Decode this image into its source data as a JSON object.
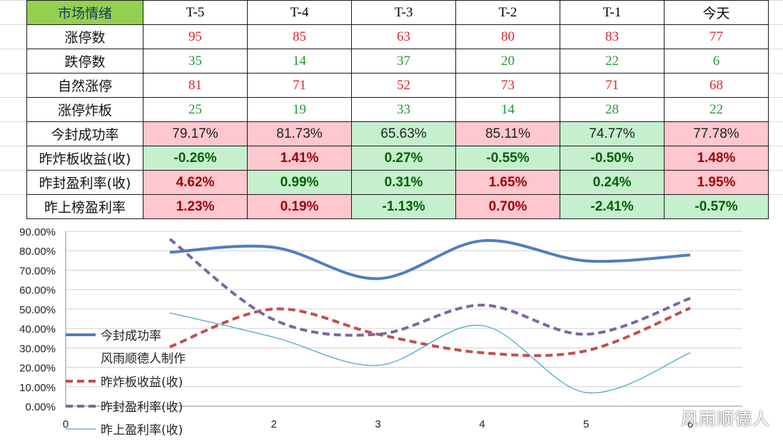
{
  "table": {
    "header": [
      "市场情绪",
      "T-5",
      "T-4",
      "T-3",
      "T-2",
      "T-1",
      "今天"
    ],
    "rows": [
      {
        "label": "涨停数",
        "values": [
          "95",
          "85",
          "63",
          "80",
          "83",
          "77"
        ]
      },
      {
        "label": "跌停数",
        "values": [
          "35",
          "14",
          "37",
          "20",
          "22",
          "6"
        ]
      },
      {
        "label": "自然涨停",
        "values": [
          "81",
          "71",
          "52",
          "73",
          "71",
          "68"
        ]
      },
      {
        "label": "涨停炸板",
        "values": [
          "25",
          "19",
          "33",
          "14",
          "28",
          "22"
        ]
      },
      {
        "label": "今封成功率",
        "values": [
          "79.17%",
          "81.73%",
          "65.63%",
          "85.11%",
          "74.77%",
          "77.78%"
        ]
      },
      {
        "label": "昨炸板收益(收)",
        "values": [
          "-0.26%",
          "1.41%",
          "0.27%",
          "-0.55%",
          "-0.50%",
          "1.48%"
        ]
      },
      {
        "label": "昨封盈利率(收)",
        "values": [
          "4.62%",
          "0.99%",
          "0.31%",
          "1.65%",
          "0.24%",
          "1.95%"
        ]
      },
      {
        "label": "昨上榜盈利率",
        "values": [
          "1.23%",
          "0.19%",
          "-1.13%",
          "0.70%",
          "-2.41%",
          "-0.57%"
        ]
      }
    ],
    "colors": {
      "header_bg": "#92d050",
      "count_red": "#e0242a",
      "count_green": "#1e9c3a",
      "pink_bg": "#ffc7ce",
      "pink_text": "#9c0006",
      "mint_bg": "#c6efce",
      "mint_text": "#006100"
    }
  },
  "chart_data": {
    "type": "line",
    "x": [
      1,
      2,
      3,
      4,
      5,
      6
    ],
    "xticks": [
      "0",
      "",
      "2",
      "3",
      "4",
      "5",
      "6"
    ],
    "ylim": [
      0,
      90
    ],
    "yticks": [
      "0.00%",
      "10.00%",
      "20.00%",
      "30.00%",
      "40.00%",
      "50.00%",
      "60.00%",
      "70.00%",
      "80.00%",
      "90.00%"
    ],
    "series": [
      {
        "name": "今封成功率",
        "values": [
          79.17,
          81.73,
          65.63,
          85.11,
          74.77,
          77.78
        ],
        "color": "#4f7ec0",
        "style": "solid-thick"
      },
      {
        "name": "昨炸板收益(收)",
        "values": [
          30.5,
          50,
          37,
          27.5,
          28.5,
          50.5
        ],
        "color": "#c0504d",
        "style": "dashed"
      },
      {
        "name": "昨封盈利率(收)",
        "values": [
          86,
          44.5,
          37,
          52,
          37,
          55.5
        ],
        "color": "#8064a2",
        "style": "dashed"
      },
      {
        "name": "昨上盈利率(收)",
        "values": [
          48,
          35.5,
          21,
          41.5,
          7,
          27.5
        ],
        "color": "#4bacc6",
        "style": "thin"
      }
    ],
    "annotation": "风雨顺德人制作"
  },
  "watermark": "风雨顺德人"
}
